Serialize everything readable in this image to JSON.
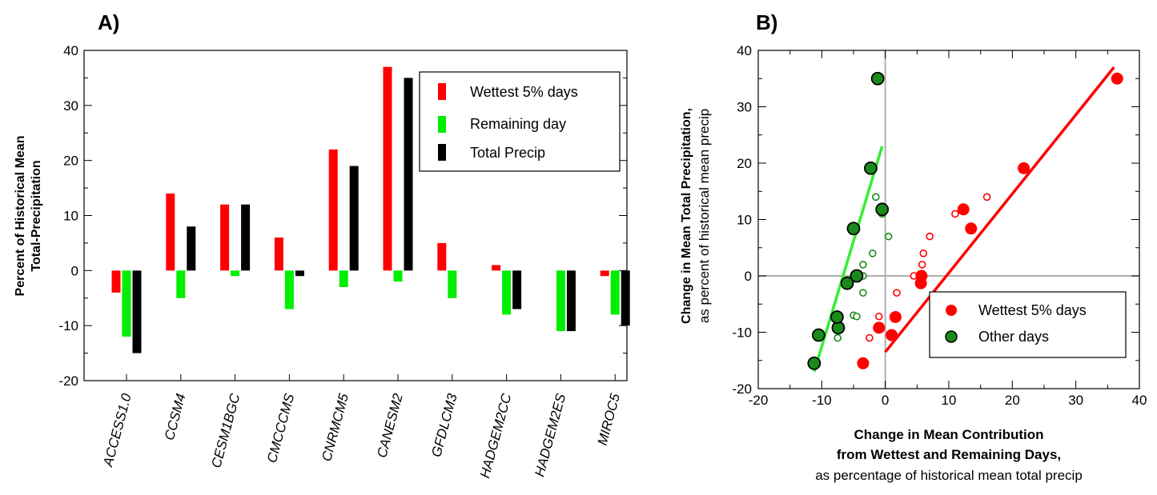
{
  "colors": {
    "red": "#ff0000",
    "green": "#00ee00",
    "black": "#000000",
    "dark_green": "#1a8a1a",
    "grid": "#b0b0b0"
  },
  "chart_data": [
    {
      "panel": "A)",
      "type": "bar",
      "ylabel_lines": [
        "Percent of Historical Mean",
        "Total-Precipitation"
      ],
      "ylim": [
        -20,
        40
      ],
      "yticks": [
        -20,
        -10,
        0,
        10,
        20,
        30,
        40
      ],
      "categories": [
        "ACCESS1.0",
        "CCSM4",
        "CESM1BGC",
        "CMCCCMS",
        "CNRMCM5",
        "CANESM2",
        "GFDLCM3",
        "HADGEM2CC",
        "HADGEM2ES",
        "MIROC5"
      ],
      "series": [
        {
          "name": "Wettest 5% days",
          "color": "#ff0000",
          "values": [
            -4,
            14,
            12,
            6,
            22,
            37,
            5,
            1,
            0,
            -1
          ]
        },
        {
          "name": "Remaining day",
          "color": "#00ee00",
          "values": [
            -12,
            -5,
            -1,
            -7,
            -3,
            -2,
            -5,
            -8,
            -11,
            -8
          ]
        },
        {
          "name": "Total Precip",
          "color": "#000000",
          "values": [
            -15,
            8,
            12,
            -1,
            19,
            35,
            0,
            -7,
            -11,
            -10
          ]
        }
      ],
      "legend": "top-right"
    },
    {
      "panel": "B)",
      "type": "scatter",
      "ylabel_bold": "Change in Mean Total Precipitation,",
      "ylabel_normal": "as percent of historical mean precip",
      "xlabel_bold_lines": [
        "Change in Mean Contribution",
        "from Wettest and Remaining Days,"
      ],
      "xlabel_normal": "as percentage of historical mean total precip",
      "xlim": [
        -20,
        40
      ],
      "ylim": [
        -20,
        40
      ],
      "xticks": [
        -20,
        -10,
        0,
        10,
        20,
        30,
        40
      ],
      "yticks": [
        -20,
        -10,
        0,
        10,
        20,
        30,
        40
      ],
      "series": [
        {
          "name": "Wettest 5% days",
          "color": "#ff0000",
          "points": [
            [
              -3.5,
              -15.5
            ],
            [
              -1,
              -9.2
            ],
            [
              1,
              -10.5
            ],
            [
              1.6,
              -7.3
            ],
            [
              5.7,
              0
            ],
            [
              5.6,
              -1.3
            ],
            [
              12.3,
              11.8
            ],
            [
              13.5,
              8.4
            ],
            [
              21.8,
              19.1
            ],
            [
              36.5,
              35
            ]
          ],
          "minor_points": [
            [
              -2.5,
              -11
            ],
            [
              -1,
              -7.2
            ],
            [
              1.8,
              -3
            ],
            [
              4.5,
              0
            ],
            [
              5.8,
              2
            ],
            [
              6,
              4
            ],
            [
              7,
              7
            ],
            [
              11,
              11
            ],
            [
              16,
              14
            ]
          ],
          "fit_line": [
            [
              0,
              -13.5
            ],
            [
              36,
              37
            ]
          ]
        },
        {
          "name": "Other days",
          "color": "#1a8a1a",
          "points": [
            [
              -11.2,
              -15.5
            ],
            [
              -10.5,
              -10.5
            ],
            [
              -7.4,
              -9.2
            ],
            [
              -7.6,
              -7.3
            ],
            [
              -6,
              -1.3
            ],
            [
              -5,
              8.4
            ],
            [
              -4.5,
              0
            ],
            [
              -2.3,
              19.1
            ],
            [
              -0.5,
              11.8
            ],
            [
              -1.2,
              35
            ]
          ],
          "minor_points": [
            [
              -7.5,
              -11
            ],
            [
              -5,
              -7
            ],
            [
              -4.5,
              -7.2
            ],
            [
              -3.5,
              -3
            ],
            [
              -3.5,
              0
            ],
            [
              -3.5,
              2
            ],
            [
              -2,
              4
            ],
            [
              -1.5,
              14
            ],
            [
              -0.5,
              11
            ],
            [
              0.5,
              7
            ]
          ],
          "fit_line": [
            [
              -11.2,
              -17
            ],
            [
              -0.5,
              23
            ]
          ]
        }
      ],
      "legend": "bottom-right"
    }
  ]
}
